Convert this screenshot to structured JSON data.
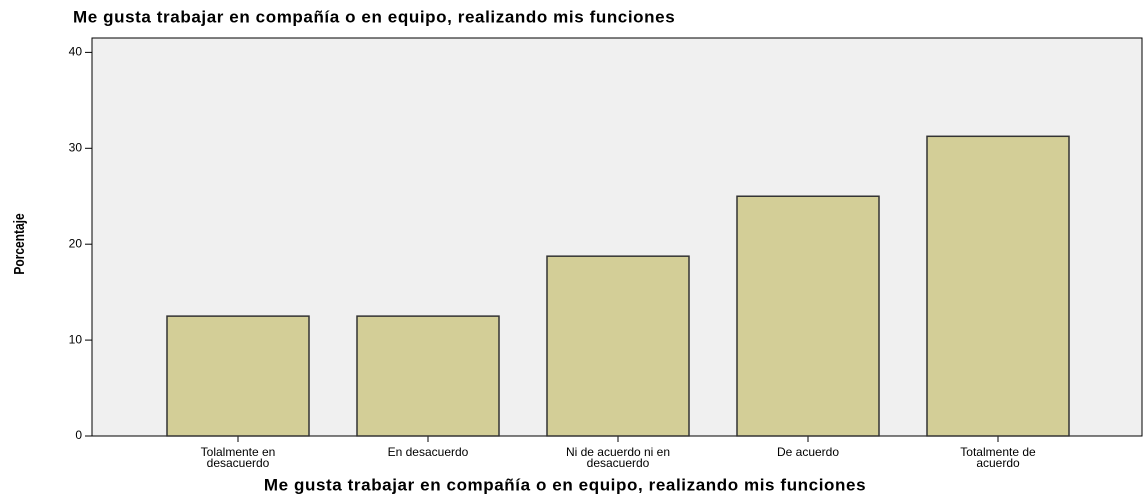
{
  "chart_data": {
    "type": "bar",
    "title": "Me gusta trabajar en compañía o en equipo, realizando mis funciones",
    "x_label": "Me gusta trabajar en compañía o en equipo, realizando mis funciones",
    "y_label": "Porcentaje",
    "categories": [
      "Tolalmente en\ndesacuerdo",
      "En desacuerdo",
      "Ni de acuerdo ni en\ndesacuerdo",
      "De acuerdo",
      "Totalmente de\nacuerdo"
    ],
    "values": [
      12.5,
      12.5,
      18.75,
      25,
      31.25
    ],
    "color": "#d3ce97",
    "ylim": [
      0,
      41.5
    ],
    "yticks": [
      0,
      10,
      20,
      30,
      40
    ],
    "grid": false
  }
}
